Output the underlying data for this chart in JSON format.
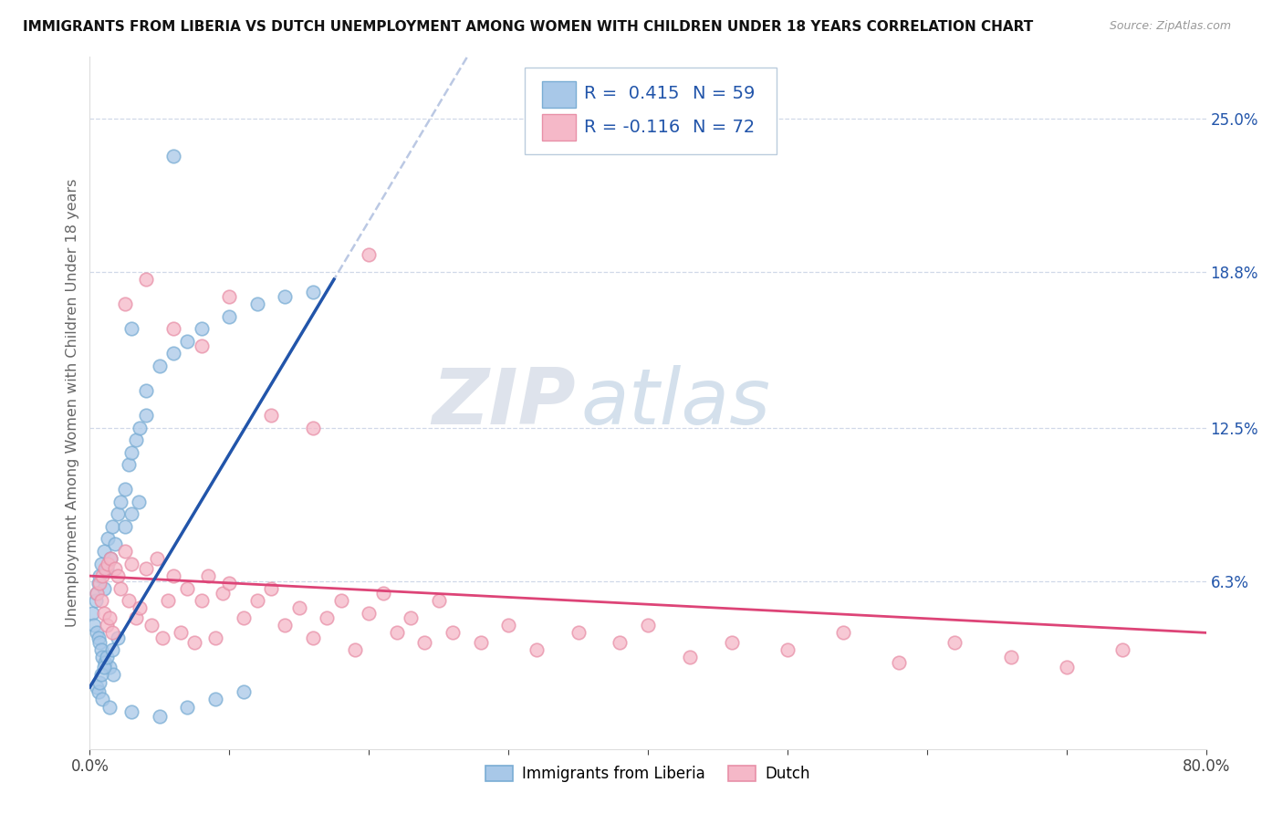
{
  "title": "IMMIGRANTS FROM LIBERIA VS DUTCH UNEMPLOYMENT AMONG WOMEN WITH CHILDREN UNDER 18 YEARS CORRELATION CHART",
  "source": "Source: ZipAtlas.com",
  "ylabel": "Unemployment Among Women with Children Under 18 years",
  "xmin": 0.0,
  "xmax": 0.8,
  "ymin": -0.005,
  "ymax": 0.275,
  "ytick_positions": [
    0.063,
    0.125,
    0.188,
    0.25
  ],
  "ytick_labels": [
    "6.3%",
    "12.5%",
    "18.8%",
    "25.0%"
  ],
  "r1": 0.415,
  "n1": 59,
  "r2": -0.116,
  "n2": 72,
  "series1_color": "#a8c8e8",
  "series2_color": "#f5b8c8",
  "series1_edge": "#7aadd4",
  "series2_edge": "#e890a8",
  "line1_color": "#2255aa",
  "line2_color": "#dd4477",
  "dash_color": "#aabbdd",
  "watermark_zip": "ZIP",
  "watermark_atlas": "atlas",
  "legend_label1": "Immigrants from Liberia",
  "legend_label2": "Dutch",
  "blue_x": [
    0.002,
    0.003,
    0.004,
    0.005,
    0.005,
    0.006,
    0.006,
    0.007,
    0.007,
    0.008,
    0.008,
    0.009,
    0.01,
    0.01,
    0.011,
    0.012,
    0.013,
    0.014,
    0.015,
    0.016,
    0.017,
    0.018,
    0.02,
    0.022,
    0.025,
    0.028,
    0.03,
    0.033,
    0.036,
    0.04,
    0.005,
    0.006,
    0.007,
    0.008,
    0.009,
    0.01,
    0.012,
    0.014,
    0.016,
    0.02,
    0.025,
    0.03,
    0.035,
    0.04,
    0.05,
    0.06,
    0.07,
    0.08,
    0.1,
    0.12,
    0.14,
    0.16,
    0.03,
    0.05,
    0.07,
    0.09,
    0.11,
    0.03,
    0.06
  ],
  "blue_y": [
    0.05,
    0.045,
    0.055,
    0.042,
    0.058,
    0.04,
    0.062,
    0.038,
    0.065,
    0.035,
    0.07,
    0.032,
    0.06,
    0.075,
    0.03,
    0.068,
    0.08,
    0.028,
    0.072,
    0.085,
    0.025,
    0.078,
    0.09,
    0.095,
    0.1,
    0.11,
    0.115,
    0.12,
    0.125,
    0.13,
    0.02,
    0.018,
    0.022,
    0.025,
    0.015,
    0.028,
    0.032,
    0.012,
    0.035,
    0.04,
    0.085,
    0.09,
    0.095,
    0.14,
    0.15,
    0.155,
    0.16,
    0.165,
    0.17,
    0.175,
    0.178,
    0.18,
    0.01,
    0.008,
    0.012,
    0.015,
    0.018,
    0.165,
    0.235
  ],
  "pink_x": [
    0.005,
    0.007,
    0.008,
    0.009,
    0.01,
    0.011,
    0.012,
    0.013,
    0.014,
    0.015,
    0.016,
    0.018,
    0.02,
    0.022,
    0.025,
    0.028,
    0.03,
    0.033,
    0.036,
    0.04,
    0.044,
    0.048,
    0.052,
    0.056,
    0.06,
    0.065,
    0.07,
    0.075,
    0.08,
    0.085,
    0.09,
    0.095,
    0.1,
    0.11,
    0.12,
    0.13,
    0.14,
    0.15,
    0.16,
    0.17,
    0.18,
    0.19,
    0.2,
    0.21,
    0.22,
    0.23,
    0.24,
    0.25,
    0.26,
    0.28,
    0.3,
    0.32,
    0.35,
    0.38,
    0.4,
    0.43,
    0.46,
    0.5,
    0.54,
    0.58,
    0.62,
    0.66,
    0.7,
    0.74,
    0.025,
    0.04,
    0.06,
    0.08,
    0.1,
    0.13,
    0.16,
    0.2
  ],
  "pink_y": [
    0.058,
    0.062,
    0.055,
    0.065,
    0.05,
    0.068,
    0.045,
    0.07,
    0.048,
    0.072,
    0.042,
    0.068,
    0.065,
    0.06,
    0.075,
    0.055,
    0.07,
    0.048,
    0.052,
    0.068,
    0.045,
    0.072,
    0.04,
    0.055,
    0.065,
    0.042,
    0.06,
    0.038,
    0.055,
    0.065,
    0.04,
    0.058,
    0.062,
    0.048,
    0.055,
    0.06,
    0.045,
    0.052,
    0.04,
    0.048,
    0.055,
    0.035,
    0.05,
    0.058,
    0.042,
    0.048,
    0.038,
    0.055,
    0.042,
    0.038,
    0.045,
    0.035,
    0.042,
    0.038,
    0.045,
    0.032,
    0.038,
    0.035,
    0.042,
    0.03,
    0.038,
    0.032,
    0.028,
    0.035,
    0.175,
    0.185,
    0.165,
    0.158,
    0.178,
    0.13,
    0.125,
    0.195
  ]
}
